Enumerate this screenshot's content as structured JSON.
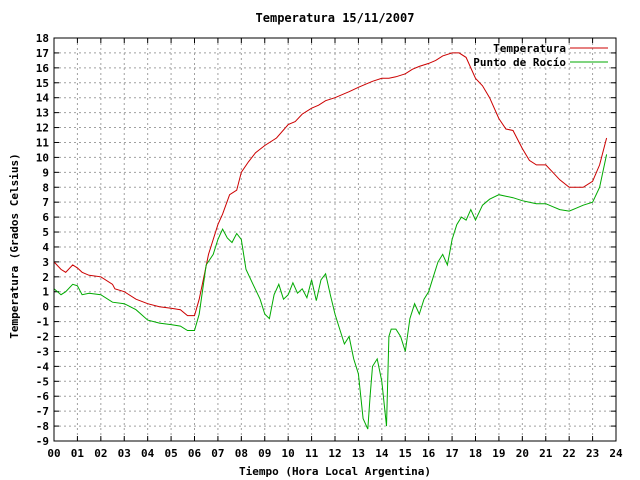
{
  "chart_data": {
    "type": "line",
    "title": "Temperatura 15/11/2007",
    "xlabel": "Tiempo (Hora Local Argentina)",
    "ylabel": "Temperatura (Grados Celsius)",
    "xlim": [
      0,
      24
    ],
    "ylim": [
      -9,
      18
    ],
    "x_tick_labels": [
      "00",
      "01",
      "02",
      "03",
      "04",
      "05",
      "06",
      "07",
      "08",
      "09",
      "10",
      "11",
      "12",
      "13",
      "14",
      "15",
      "16",
      "17",
      "18",
      "19",
      "20",
      "21",
      "22",
      "23",
      "24"
    ],
    "y_ticks": [
      -9,
      -8,
      -7,
      -6,
      -5,
      -4,
      -3,
      -2,
      -1,
      0,
      1,
      2,
      3,
      4,
      5,
      6,
      7,
      8,
      9,
      10,
      11,
      12,
      13,
      14,
      15,
      16,
      17,
      18
    ],
    "grid": true,
    "legend_position": "top-right",
    "series": [
      {
        "name": "Temperatura",
        "color": "#cc0000",
        "x": [
          0,
          0.3,
          0.5,
          0.8,
          1.0,
          1.2,
          1.5,
          2.0,
          2.5,
          2.6,
          3.0,
          3.5,
          4.0,
          4.5,
          5.0,
          5.4,
          5.7,
          6.0,
          6.2,
          6.4,
          6.6,
          6.8,
          7.0,
          7.2,
          7.5,
          7.8,
          8.0,
          8.3,
          8.6,
          9.0,
          9.5,
          10.0,
          10.3,
          10.6,
          11.0,
          11.3,
          11.6,
          12.0,
          12.3,
          12.6,
          13.0,
          13.3,
          13.6,
          14.0,
          14.3,
          14.6,
          15.0,
          15.3,
          15.6,
          16.0,
          16.3,
          16.6,
          17.0,
          17.3,
          17.6,
          18.0,
          18.3,
          18.6,
          19.0,
          19.3,
          19.6,
          20.0,
          20.3,
          20.6,
          21.0,
          21.3,
          21.6,
          22.0,
          22.3,
          22.6,
          23.0,
          23.3,
          23.6
        ],
        "y": [
          3.0,
          2.5,
          2.3,
          2.8,
          2.6,
          2.3,
          2.1,
          2.0,
          1.5,
          1.2,
          1.0,
          0.5,
          0.2,
          0.0,
          -0.1,
          -0.2,
          -0.6,
          -0.6,
          0.5,
          2.0,
          3.5,
          4.5,
          5.5,
          6.2,
          7.5,
          7.8,
          9.0,
          9.7,
          10.3,
          10.8,
          11.3,
          12.2,
          12.4,
          12.9,
          13.3,
          13.5,
          13.8,
          14.0,
          14.2,
          14.4,
          14.7,
          14.9,
          15.1,
          15.3,
          15.3,
          15.4,
          15.6,
          15.9,
          16.1,
          16.3,
          16.5,
          16.8,
          17.0,
          17.0,
          16.7,
          15.3,
          14.8,
          14.0,
          12.6,
          11.9,
          11.8,
          10.6,
          9.8,
          9.5,
          9.5,
          9.0,
          8.5,
          8.0,
          8.0,
          8.0,
          8.4,
          9.5,
          11.3
        ]
      },
      {
        "name": "Punto de Rocío",
        "color": "#00aa00",
        "x": [
          0,
          0.3,
          0.5,
          0.8,
          1.0,
          1.2,
          1.5,
          2.0,
          2.5,
          3.0,
          3.5,
          4.0,
          4.5,
          5.0,
          5.4,
          5.7,
          6.0,
          6.2,
          6.5,
          6.8,
          7.0,
          7.2,
          7.4,
          7.6,
          7.8,
          8.0,
          8.2,
          8.5,
          8.8,
          9.0,
          9.2,
          9.4,
          9.6,
          9.8,
          10.0,
          10.2,
          10.4,
          10.6,
          10.8,
          11.0,
          11.2,
          11.4,
          11.6,
          11.8,
          12.0,
          12.2,
          12.4,
          12.6,
          12.8,
          13.0,
          13.2,
          13.4,
          13.5,
          13.6,
          13.8,
          14.0,
          14.2,
          14.3,
          14.4,
          14.6,
          14.8,
          15.0,
          15.2,
          15.4,
          15.6,
          15.8,
          16.0,
          16.2,
          16.4,
          16.6,
          16.8,
          17.0,
          17.2,
          17.4,
          17.6,
          17.8,
          18.0,
          18.3,
          18.6,
          19.0,
          19.3,
          19.6,
          20.0,
          20.3,
          20.6,
          21.0,
          21.3,
          21.6,
          22.0,
          22.3,
          22.6,
          23.0,
          23.3,
          23.6
        ],
        "y": [
          1.2,
          0.8,
          1.0,
          1.5,
          1.4,
          0.8,
          0.9,
          0.8,
          0.3,
          0.2,
          -0.2,
          -0.9,
          -1.1,
          -1.2,
          -1.3,
          -1.6,
          -1.6,
          -0.5,
          2.8,
          3.5,
          4.5,
          5.2,
          4.6,
          4.3,
          4.9,
          4.5,
          2.5,
          1.5,
          0.5,
          -0.5,
          -0.8,
          0.8,
          1.5,
          0.5,
          0.8,
          1.6,
          0.9,
          1.2,
          0.6,
          1.8,
          0.4,
          1.8,
          2.2,
          0.8,
          -0.5,
          -1.5,
          -2.5,
          -2.0,
          -3.5,
          -4.5,
          -7.5,
          -8.2,
          -6.0,
          -4.0,
          -3.5,
          -5.0,
          -8.0,
          -2.0,
          -1.5,
          -1.5,
          -2.0,
          -3.0,
          -0.8,
          0.2,
          -0.5,
          0.5,
          1.0,
          2.0,
          3.0,
          3.5,
          2.8,
          4.5,
          5.5,
          6.0,
          5.8,
          6.5,
          5.8,
          6.8,
          7.2,
          7.5,
          7.4,
          7.3,
          7.1,
          7.0,
          6.9,
          6.9,
          6.7,
          6.5,
          6.4,
          6.6,
          6.8,
          7.0,
          8.0,
          10.2
        ]
      }
    ]
  }
}
